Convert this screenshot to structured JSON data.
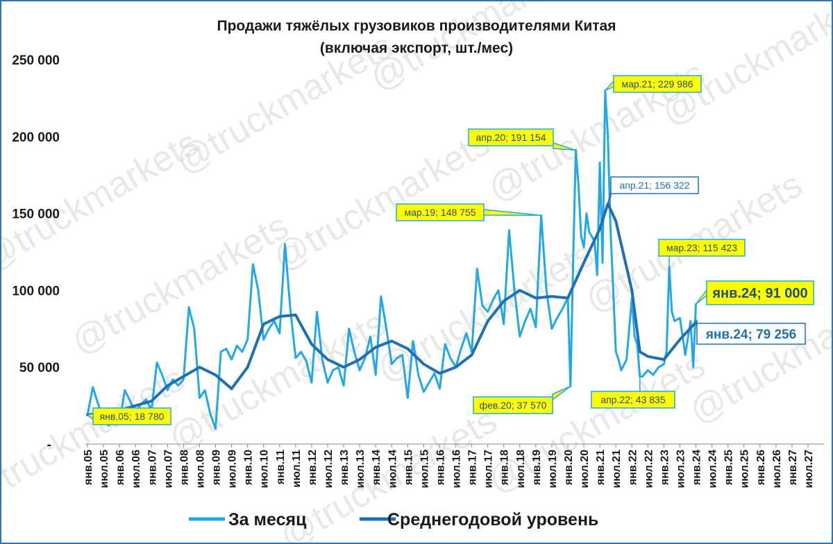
{
  "watermark": "@truckmarkets",
  "chart_data": {
    "type": "line",
    "title_lines": [
      "Продажи тяжёлых грузовиков производителями Китая",
      "(включая экспорт, шт./мес)"
    ],
    "ylim": [
      0,
      250000
    ],
    "yticks": [
      {
        "value": 0,
        "label": "-"
      },
      {
        "value": 50000,
        "label": "50 000"
      },
      {
        "value": 100000,
        "label": "100 000"
      },
      {
        "value": 150000,
        "label": "150 000"
      },
      {
        "value": 200000,
        "label": "200 000"
      },
      {
        "value": 250000,
        "label": "250 000"
      }
    ],
    "x_tick_labels": [
      "янв.05",
      "июл.05",
      "янв.06",
      "июл.06",
      "янв.07",
      "июл.07",
      "янв.08",
      "июл.08",
      "янв.09",
      "июл.09",
      "янв.10",
      "июл.10",
      "янв.11",
      "июл.11",
      "янв.12",
      "июл.12",
      "янв.13",
      "июл.13",
      "янв.14",
      "июл.14",
      "янв.15",
      "июл.15",
      "янв.16",
      "июл.16",
      "янв.17",
      "июл.17",
      "янв.18",
      "июл.18",
      "янв.19",
      "июл.19",
      "янв.20",
      "июл.20",
      "янв.21",
      "июл.21",
      "янв.22",
      "июл.22",
      "янв.23",
      "июл.23",
      "янв.24",
      "июл.24",
      "янв.25",
      "июл.25",
      "янв.26",
      "июл.26",
      "янв.27",
      "июл.27"
    ],
    "legend_position": "bottom",
    "series": [
      {
        "name": "За месяц",
        "color": "#22a8e6",
        "points": [
          [
            "янв.05",
            18780
          ],
          [
            "мар.05",
            37000
          ],
          [
            "май.05",
            26000
          ],
          [
            "июл.05",
            16000
          ],
          [
            "сен.05",
            12000
          ],
          [
            "ноя.05",
            18000
          ],
          [
            "янв.06",
            14000
          ],
          [
            "мар.06",
            35000
          ],
          [
            "май.06",
            28000
          ],
          [
            "июл.06",
            20000
          ],
          [
            "сен.06",
            26000
          ],
          [
            "ноя.06",
            29000
          ],
          [
            "янв.07",
            22000
          ],
          [
            "мар.07",
            53000
          ],
          [
            "май.07",
            45000
          ],
          [
            "июл.07",
            35000
          ],
          [
            "сен.07",
            42000
          ],
          [
            "ноя.07",
            38000
          ],
          [
            "янв.08",
            42000
          ],
          [
            "мар.08",
            89000
          ],
          [
            "май.08",
            75000
          ],
          [
            "июл.08",
            30000
          ],
          [
            "сен.08",
            35000
          ],
          [
            "ноя.08",
            20000
          ],
          [
            "янв.09",
            10000
          ],
          [
            "мар.09",
            60000
          ],
          [
            "май.09",
            62000
          ],
          [
            "июл.09",
            55000
          ],
          [
            "сен.09",
            64000
          ],
          [
            "ноя.09",
            60000
          ],
          [
            "янв.10",
            68000
          ],
          [
            "мар.10",
            117000
          ],
          [
            "май.10",
            100000
          ],
          [
            "июл.10",
            68000
          ],
          [
            "сен.10",
            75000
          ],
          [
            "ноя.10",
            80000
          ],
          [
            "янв.11",
            72000
          ],
          [
            "мар.11",
            130000
          ],
          [
            "май.11",
            88000
          ],
          [
            "июл.11",
            56000
          ],
          [
            "сен.11",
            60000
          ],
          [
            "ноя.11",
            54000
          ],
          [
            "янв.12",
            40000
          ],
          [
            "мар.12",
            86000
          ],
          [
            "май.12",
            55000
          ],
          [
            "июл.12",
            40000
          ],
          [
            "сен.12",
            48000
          ],
          [
            "ноя.12",
            50000
          ],
          [
            "янв.13",
            38000
          ],
          [
            "мар.13",
            75000
          ],
          [
            "май.13",
            60000
          ],
          [
            "июл.13",
            48000
          ],
          [
            "сен.13",
            56000
          ],
          [
            "ноя.13",
            70000
          ],
          [
            "янв.14",
            45000
          ],
          [
            "мар.14",
            96000
          ],
          [
            "май.14",
            75000
          ],
          [
            "июл.14",
            52000
          ],
          [
            "сен.14",
            56000
          ],
          [
            "ноя.14",
            58000
          ],
          [
            "янв.15",
            30000
          ],
          [
            "мар.15",
            67000
          ],
          [
            "май.15",
            45000
          ],
          [
            "июл.15",
            34000
          ],
          [
            "сен.15",
            40000
          ],
          [
            "ноя.15",
            46000
          ],
          [
            "янв.16",
            36000
          ],
          [
            "мар.16",
            65000
          ],
          [
            "май.16",
            56000
          ],
          [
            "июл.16",
            50000
          ],
          [
            "сен.16",
            62000
          ],
          [
            "ноя.16",
            72000
          ],
          [
            "янв.17",
            60000
          ],
          [
            "мар.17",
            114000
          ],
          [
            "май.17",
            90000
          ],
          [
            "июл.17",
            86000
          ],
          [
            "сен.17",
            94000
          ],
          [
            "ноя.17",
            100000
          ],
          [
            "янв.18",
            78000
          ],
          [
            "мар.18",
            139000
          ],
          [
            "май.18",
            100000
          ],
          [
            "июл.18",
            70000
          ],
          [
            "сен.18",
            80000
          ],
          [
            "ноя.18",
            88000
          ],
          [
            "янв.19",
            76000
          ],
          [
            "мар.19",
            148755
          ],
          [
            "май.19",
            100000
          ],
          [
            "июл.19",
            75000
          ],
          [
            "сен.19",
            82000
          ],
          [
            "ноя.19",
            88000
          ],
          [
            "янв.20",
            95000
          ],
          [
            "фев.20",
            37570
          ],
          [
            "мар.20",
            120000
          ],
          [
            "апр.20",
            191154
          ],
          [
            "май.20",
            168000
          ],
          [
            "июн.20",
            135000
          ],
          [
            "июл.20",
            128000
          ],
          [
            "авг.20",
            150000
          ],
          [
            "сен.20",
            138000
          ],
          [
            "ноя.20",
            132000
          ],
          [
            "дек.20",
            110000
          ],
          [
            "янв.21",
            183000
          ],
          [
            "фев.21",
            118000
          ],
          [
            "мар.21",
            229986
          ],
          [
            "апр.21",
            200000
          ],
          [
            "май.21",
            140000
          ],
          [
            "июн.21",
            100000
          ],
          [
            "июл.21",
            60000
          ],
          [
            "авг.21",
            55000
          ],
          [
            "сен.21",
            48000
          ],
          [
            "ноя.21",
            55000
          ],
          [
            "янв.22",
            95000
          ],
          [
            "фев.22",
            70000
          ],
          [
            "мар.22",
            65000
          ],
          [
            "апр.22",
            43835
          ],
          [
            "май.22",
            44000
          ],
          [
            "июл.22",
            48000
          ],
          [
            "сен.22",
            45000
          ],
          [
            "ноя.22",
            50000
          ],
          [
            "янв.23",
            52000
          ],
          [
            "фев.23",
            60000
          ],
          [
            "мар.23",
            115423
          ],
          [
            "апр.23",
            86000
          ],
          [
            "май.23",
            80000
          ],
          [
            "июл.23",
            82000
          ],
          [
            "сен.23",
            58000
          ],
          [
            "ноя.23",
            80000
          ],
          [
            "дек.23",
            50000
          ],
          [
            "янв.24",
            91000
          ]
        ]
      },
      {
        "name": "Среднегодовой уровень",
        "color": "#1f6fb5",
        "points": [
          [
            "янв.05",
            19000
          ],
          [
            "янв.06",
            22000
          ],
          [
            "янв.07",
            28000
          ],
          [
            "июл.07",
            38000
          ],
          [
            "янв.08",
            44000
          ],
          [
            "июл.08",
            50000
          ],
          [
            "янв.09",
            45000
          ],
          [
            "июл.09",
            36000
          ],
          [
            "янв.10",
            50000
          ],
          [
            "июл.10",
            78000
          ],
          [
            "янв.11",
            83000
          ],
          [
            "июл.11",
            84000
          ],
          [
            "янв.12",
            65000
          ],
          [
            "июл.12",
            55000
          ],
          [
            "янв.13",
            50000
          ],
          [
            "июл.13",
            55000
          ],
          [
            "янв.14",
            63000
          ],
          [
            "июл.14",
            67000
          ],
          [
            "янв.15",
            62000
          ],
          [
            "июл.15",
            52000
          ],
          [
            "янв.16",
            46000
          ],
          [
            "июл.16",
            50000
          ],
          [
            "янв.17",
            58000
          ],
          [
            "июл.17",
            80000
          ],
          [
            "янв.18",
            93000
          ],
          [
            "июл.18",
            100000
          ],
          [
            "янв.19",
            95000
          ],
          [
            "июл.19",
            96000
          ],
          [
            "янв.20",
            95000
          ],
          [
            "июл.20",
            118000
          ],
          [
            "янв.21",
            140000
          ],
          [
            "апр.21",
            156322
          ],
          [
            "июл.21",
            145000
          ],
          [
            "янв.22",
            100000
          ],
          [
            "апр.22",
            60000
          ],
          [
            "июл.22",
            57000
          ],
          [
            "янв.23",
            55000
          ],
          [
            "июл.23",
            68000
          ],
          [
            "янв.24",
            79256
          ]
        ]
      }
    ],
    "annotations": [
      {
        "x": "янв.05",
        "value": 18780,
        "text": "янв.05;  18 780",
        "series": "За месяц"
      },
      {
        "x": "фев.20",
        "value": 37570,
        "text": "фев.20; 37 570",
        "series": "За месяц"
      },
      {
        "x": "мар.19",
        "value": 148755,
        "text": "мар.19; 148 755",
        "series": "За месяц"
      },
      {
        "x": "апр.20",
        "value": 191154,
        "text": "апр.20;  191 154",
        "series": "За месяц"
      },
      {
        "x": "мар.21",
        "value": 229986,
        "text": "мар.21;  229 986",
        "series": "За месяц"
      },
      {
        "x": "апр.21",
        "value": 156322,
        "text": "апр.21;  156 322",
        "series": "Среднегодовой уровень"
      },
      {
        "x": "апр.22",
        "value": 43835,
        "text": "апр.22;  43 835",
        "series": "За месяц"
      },
      {
        "x": "мар.23",
        "value": 115423,
        "text": "мар.23; 115 423",
        "series": "За месяц"
      },
      {
        "x": "янв.24",
        "value": 91000,
        "text": "янв.24;  91 000",
        "series": "За месяц"
      },
      {
        "x": "янв.24",
        "value": 79256,
        "text": "янв.24;  79 256",
        "series": "Среднегодовой уровень"
      }
    ]
  }
}
